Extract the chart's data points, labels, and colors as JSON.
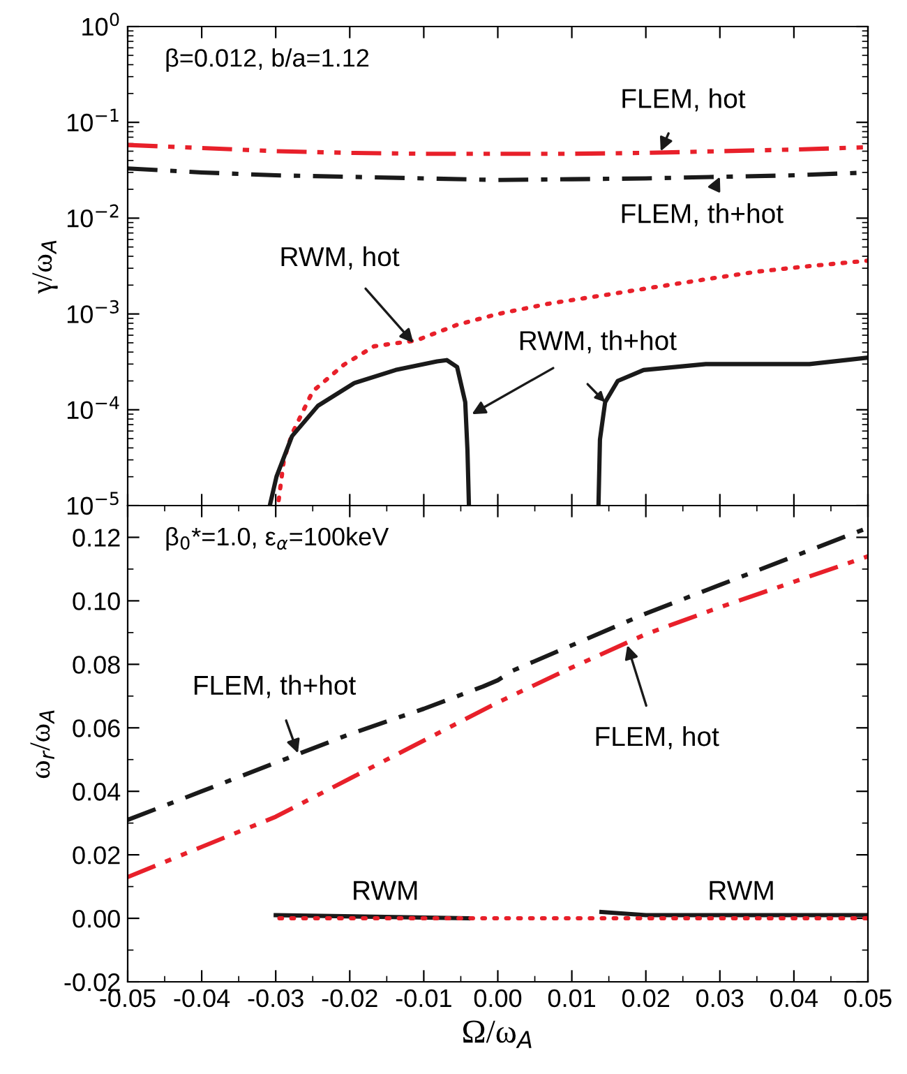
{
  "chart_data": [
    {
      "type": "line",
      "ylabel": "γ/ω$_{A}$",
      "log": "y",
      "ylim": [
        1e-05,
        1
      ],
      "xlim": [
        -0.05,
        0.05
      ],
      "tick_labels": "y",
      "yticks": [
        {
          "value": 1e-05,
          "label": "10$^{−5}$"
        },
        {
          "value": 0.0001,
          "label": "10$^{−4}$"
        },
        {
          "value": 0.001,
          "label": "10$^{−3}$"
        },
        {
          "value": 0.01,
          "label": "10$^{−2}$"
        },
        {
          "value": 0.1,
          "label": "10$^{−1}$"
        },
        {
          "value": 1,
          "label": "10$^{0}$"
        }
      ],
      "xticks": [
        -0.05,
        -0.04,
        -0.03,
        -0.02,
        -0.01,
        0.0,
        0.01,
        0.02,
        0.03,
        0.04,
        0.05
      ],
      "series": [
        {
          "color": "#e8202a",
          "line_style": "dashdotdot",
          "x": [
            -0.05,
            -0.04,
            -0.03,
            -0.02,
            -0.01,
            0.0,
            0.01,
            0.02,
            0.03,
            0.04,
            0.05
          ],
          "values": [
            0.058,
            0.054,
            0.05,
            0.048,
            0.047,
            0.047,
            0.047,
            0.048,
            0.05,
            0.052,
            0.055
          ]
        },
        {
          "color": "#1a1a1a",
          "line_style": "dashdot",
          "x": [
            -0.05,
            -0.04,
            -0.03,
            -0.02,
            -0.01,
            0.0,
            0.01,
            0.02,
            0.03,
            0.04,
            0.05
          ],
          "values": [
            0.033,
            0.03,
            0.028,
            0.027,
            0.026,
            0.025,
            0.0255,
            0.026,
            0.027,
            0.028,
            0.03
          ]
        },
        {
          "color": "#e8202a",
          "line_style": "dotted",
          "x": [
            -0.0296,
            -0.0289,
            -0.0278,
            -0.025,
            -0.0208,
            -0.0167,
            -0.011,
            -0.0055,
            0.0,
            0.0071,
            0.0141,
            0.0211,
            0.0281,
            0.0351,
            0.0421,
            0.05
          ],
          "values": [
            1.14e-05,
            3e-05,
            5.6e-05,
            0.000156,
            0.000295,
            0.00046,
            0.00053,
            0.00077,
            0.001,
            0.00129,
            0.00156,
            0.0019,
            0.0023,
            0.00277,
            0.00316,
            0.0036
          ]
        },
        {
          "color": "#1a1a1a",
          "line_style": "solid",
          "x": [
            -0.0308,
            -0.0299,
            -0.0278,
            -0.0243,
            -0.0194,
            -0.0138,
            -0.0082,
            -0.0069,
            -0.0055,
            -0.0044,
            -0.0041,
            -0.0039,
            0.005,
            0.0136,
            0.0138,
            0.0145,
            0.0162,
            0.0197,
            0.0281,
            0.0351,
            0.0421,
            0.05
          ],
          "values": [
            1e-05,
            2e-05,
            5.3e-05,
            0.00011,
            0.00019,
            0.00026,
            0.00032,
            0.00033,
            0.00028,
            0.00012,
            3.8e-05,
            1e-05,
            null,
            1e-05,
            4.9e-05,
            0.00012,
            0.0002,
            0.00026,
            0.0003,
            0.0003,
            0.0003,
            0.00035
          ]
        }
      ],
      "annotations": [
        "β=0.012, b/a=1.12",
        {
          "text": "FLEM, hot",
          "x": 0.022,
          "y": 0.05
        },
        {
          "text": "FLEM, th+hot",
          "x": 0.03,
          "y": 0.027
        },
        {
          "text": "RWM, hot",
          "x": -0.0114,
          "y": 0.0005
        },
        {
          "text": "RWM, th+hot",
          "x": -0.0035,
          "y": 9e-05
        }
      ]
    },
    {
      "type": "line",
      "xlabel": "Ω/ω$_{A}$",
      "ylabel": "ω$_{r}$/ω$_{A}$",
      "ylim": [
        -0.02,
        0.13
      ],
      "xlim": [
        -0.05,
        0.05
      ],
      "yticks": [
        {
          "value": -0.02,
          "label": "-0.02"
        },
        {
          "value": -0.01,
          "label": null
        },
        {
          "value": 0.0,
          "label": "0.00"
        },
        {
          "value": 0.01,
          "label": null
        },
        {
          "value": 0.02,
          "label": "0.02"
        },
        {
          "value": 0.03,
          "label": null
        },
        {
          "value": 0.04,
          "label": "0.04"
        },
        {
          "value": 0.05,
          "label": null
        },
        {
          "value": 0.06,
          "label": "0.06"
        },
        {
          "value": 0.07,
          "label": null
        },
        {
          "value": 0.08,
          "label": "0.08"
        },
        {
          "value": 0.09,
          "label": null
        },
        {
          "value": 0.1,
          "label": "0.10"
        },
        {
          "value": 0.11,
          "label": null
        },
        {
          "value": 0.12,
          "label": "0.12"
        }
      ],
      "xticks": [
        {
          "value": -0.05,
          "label": "-0.05"
        },
        {
          "value": -0.045,
          "label": null
        },
        {
          "value": -0.04,
          "label": "-0.04"
        },
        {
          "value": -0.035,
          "label": null
        },
        {
          "value": -0.03,
          "label": "-0.03"
        },
        {
          "value": -0.025,
          "label": null
        },
        {
          "value": -0.02,
          "label": "-0.02"
        },
        {
          "value": -0.015,
          "label": null
        },
        {
          "value": -0.01,
          "label": "-0.01"
        },
        {
          "value": -0.005,
          "label": null
        },
        {
          "value": 0.0,
          "label": "0.00"
        },
        {
          "value": 0.005,
          "label": null
        },
        {
          "value": 0.01,
          "label": "0.01"
        },
        {
          "value": 0.015,
          "label": null
        },
        {
          "value": 0.02,
          "label": "0.02"
        },
        {
          "value": 0.025,
          "label": null
        },
        {
          "value": 0.03,
          "label": "0.03"
        },
        {
          "value": 0.035,
          "label": null
        },
        {
          "value": 0.04,
          "label": "0.04"
        },
        {
          "value": 0.045,
          "label": null
        },
        {
          "value": 0.05,
          "label": "0.05"
        }
      ],
      "series": [
        {
          "color": "#1a1a1a",
          "line_style": "dashdot",
          "x": [
            -0.05,
            -0.04,
            -0.03,
            -0.02,
            -0.01,
            -0.002,
            0.0,
            0.002,
            0.01,
            0.02,
            0.03,
            0.04,
            0.05
          ],
          "values": [
            0.031,
            0.04,
            0.049,
            0.058,
            0.066,
            0.073,
            0.075,
            0.078,
            0.086,
            0.096,
            0.105,
            0.114,
            0.123
          ]
        },
        {
          "color": "#e8202a",
          "line_style": "dashdotdot",
          "x": [
            -0.05,
            -0.04,
            -0.03,
            -0.02,
            -0.01,
            0.0,
            0.01,
            0.02,
            0.03,
            0.04,
            0.05
          ],
          "values": [
            0.013,
            0.0225,
            0.032,
            0.044,
            0.056,
            0.068,
            0.079,
            0.0895,
            0.098,
            0.106,
            0.114
          ]
        },
        {
          "color": "#1a1a1a",
          "line_style": "solid",
          "x": [
            -0.03,
            -0.004,
            0.005,
            0.014,
            0.02,
            0.05
          ],
          "values": [
            0.001,
            0.0,
            null,
            0.002,
            0.001,
            0.001
          ]
        },
        {
          "color": "#e8202a",
          "line_style": "dotted",
          "x": [
            -0.0295,
            0.05
          ],
          "values": [
            0.0,
            0.0
          ]
        }
      ],
      "annotations": [
        "β$_{0}$*=1.0, ε$_{α}$=100keV",
        {
          "text": "FLEM, th+hot",
          "x": -0.027,
          "y": 0.052
        },
        {
          "text": "FLEM, hot",
          "x": 0.0175,
          "y": 0.086
        },
        "RWM",
        "RWM"
      ]
    }
  ]
}
